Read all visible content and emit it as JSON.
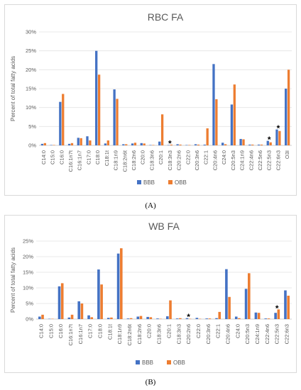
{
  "panels": [
    {
      "sublabel": "(A)"
    },
    {
      "sublabel": "(B)"
    }
  ],
  "colors": {
    "BBB": "#4472c4",
    "OBB": "#ed7d31"
  },
  "chart_data": [
    {
      "type": "bar",
      "title": "RBC FA",
      "ylabel": "Percent of total fatty acids",
      "ylim": [
        0,
        30
      ],
      "yticks": [
        "0%",
        "5%",
        "10%",
        "15%",
        "20%",
        "25%",
        "30%"
      ],
      "grid": true,
      "legend": "bottom",
      "categories": [
        "C14:0",
        "C15:0",
        "C16:0",
        "C16:1n7t",
        "C16:1n7",
        "C17:0",
        "C18:0",
        "C18:1t",
        "C18:1n9",
        "C18:2n6t",
        "C18:2n6",
        "C20:0",
        "C18:3n6",
        "C20:1",
        "C18:3n3",
        "C20:2n6",
        "C22:0",
        "C20:3n6",
        "C22:1",
        "C20:4n6",
        "C24:0",
        "C20:5n3",
        "C24:1n9",
        "C22:4n6",
        "C22:5n6",
        "C22:5n3",
        "C22:6n3",
        "O3I"
      ],
      "series": [
        {
          "name": "BBB",
          "values": [
            0.4,
            0.1,
            11.5,
            0.4,
            2.0,
            2.4,
            25.0,
            0.5,
            14.8,
            0.3,
            0.5,
            0.6,
            0.1,
            1.0,
            0.1,
            0.3,
            0.1,
            0.3,
            0.2,
            21.5,
            0.7,
            10.8,
            1.7,
            0.2,
            0.2,
            1.2,
            4.2,
            15.0
          ]
        },
        {
          "name": "OBB",
          "values": [
            0.6,
            0.1,
            13.6,
            0.6,
            1.9,
            1.3,
            18.7,
            1.3,
            12.3,
            0.3,
            0.7,
            0.5,
            0.1,
            8.2,
            0.2,
            0.2,
            0.1,
            0.2,
            4.5,
            12.2,
            0.3,
            16.1,
            1.6,
            0.2,
            0.2,
            0.8,
            3.8,
            20.0
          ]
        }
      ],
      "annotations": [
        {
          "category": "C18:3n3",
          "text": "*"
        },
        {
          "category": "C22:5n3",
          "text": "*"
        },
        {
          "category": "C22:6n3",
          "text": "*"
        }
      ]
    },
    {
      "type": "bar",
      "title": "WB FA",
      "ylabel": "Percent of total fatty acids",
      "ylim": [
        0,
        25
      ],
      "yticks": [
        "0%",
        "5%",
        "10%",
        "15%",
        "20%",
        "25%"
      ],
      "grid": true,
      "legend": "bottom",
      "categories": [
        "C14:0",
        "C15:0",
        "C16:0",
        "C16:1n7t",
        "C16:1n7",
        "C17:0",
        "C18:0",
        "C18:1t",
        "C18:1n9",
        "C18:2n6t",
        "C18:2n6",
        "C20:0",
        "C18:3n6",
        "C20:1",
        "C18:3n3",
        "C20:2n6",
        "C22:0",
        "C20:3n6",
        "C22:1",
        "C20:4n6",
        "C24:0",
        "C20:5n3",
        "C24:1n9",
        "C22:4n6",
        "C22:5n3",
        "C22:6n3"
      ],
      "series": [
        {
          "name": "BBB",
          "values": [
            0.8,
            0.1,
            10.5,
            0.5,
            5.7,
            1.2,
            15.9,
            0.4,
            21.0,
            0.2,
            0.8,
            0.7,
            0.2,
            0.9,
            0.2,
            0.3,
            0.4,
            0.2,
            0.3,
            16.0,
            0.8,
            9.7,
            2.1,
            0.2,
            2.0,
            9.2
          ]
        },
        {
          "name": "OBB",
          "values": [
            1.4,
            0.1,
            11.5,
            1.4,
            5.0,
            0.6,
            11.1,
            0.5,
            22.7,
            0.3,
            1.0,
            0.6,
            0.1,
            6.0,
            0.3,
            0.1,
            0.1,
            0.2,
            2.3,
            7.1,
            0.3,
            14.7,
            2.0,
            0.2,
            3.1,
            7.5
          ]
        }
      ],
      "annotations": [
        {
          "category": "C20:2n6",
          "text": "*"
        },
        {
          "category": "C22:5n3",
          "text": "*"
        }
      ]
    }
  ]
}
